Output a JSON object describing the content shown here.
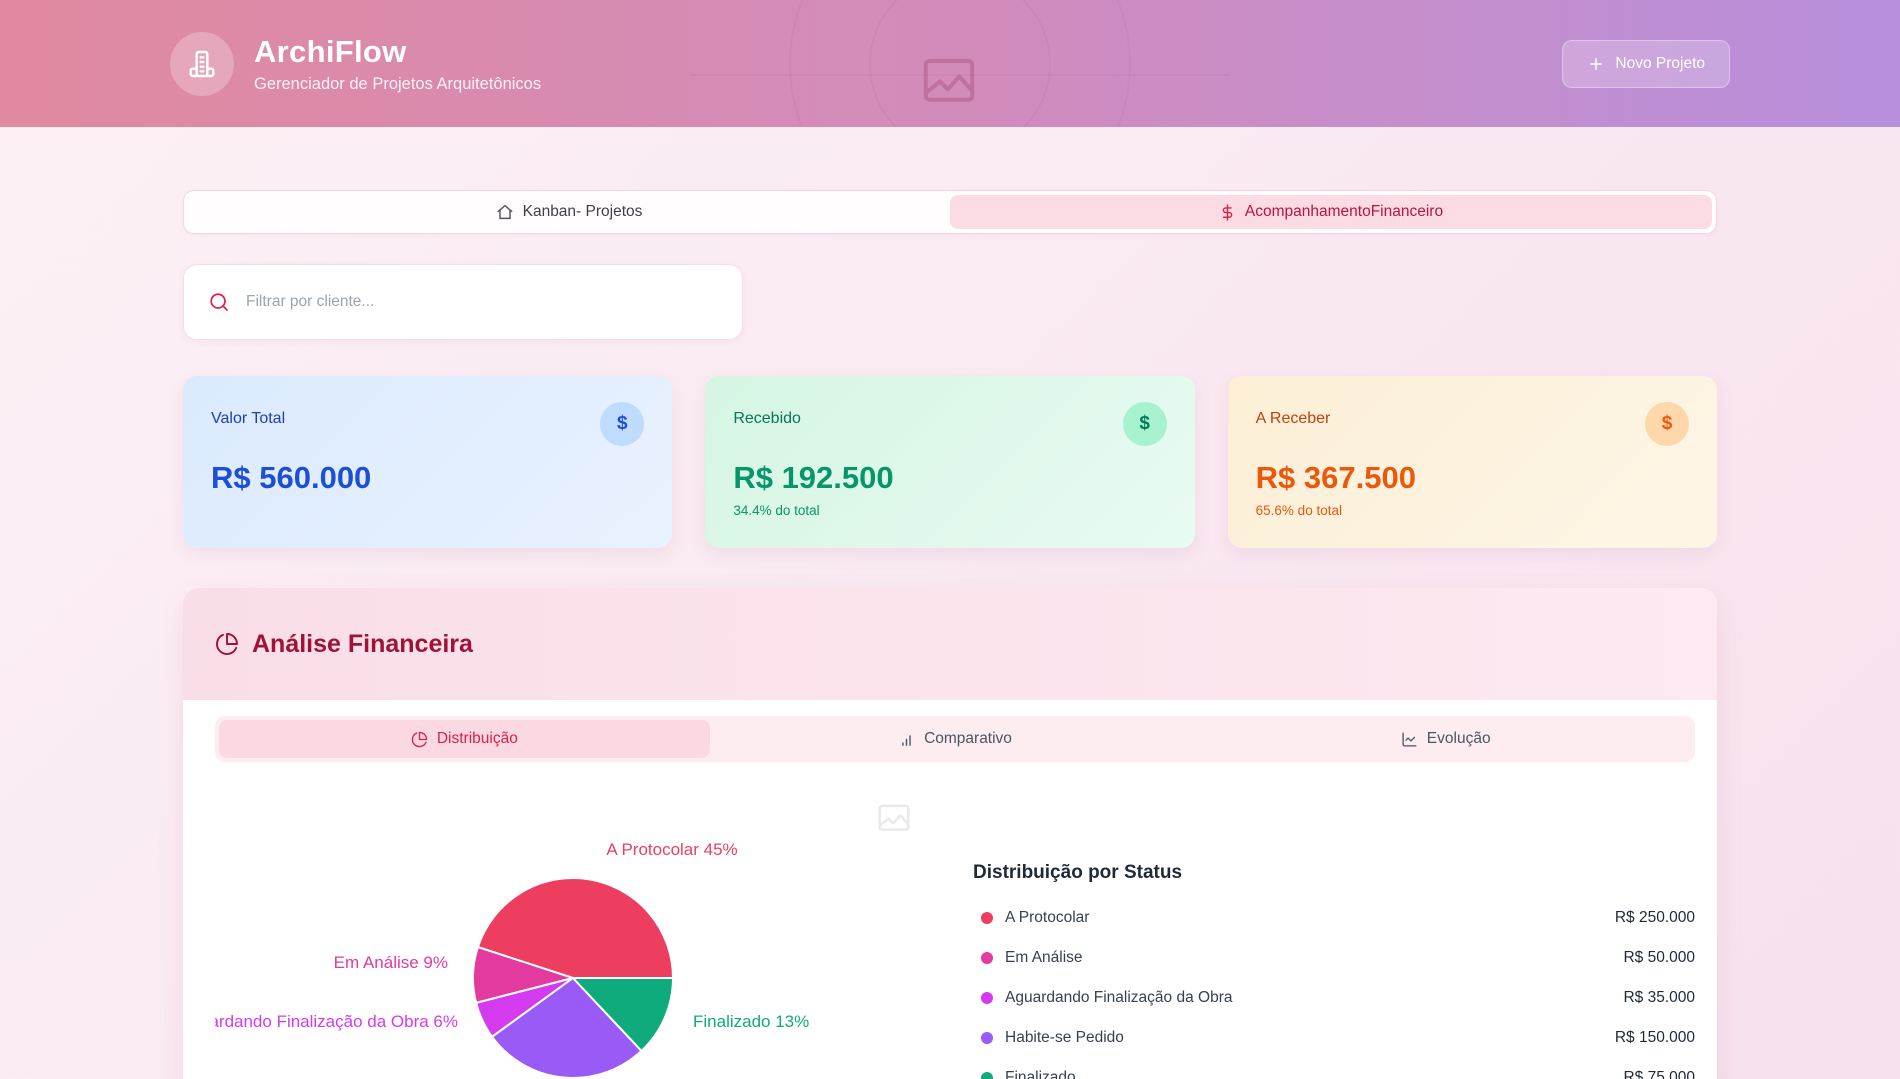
{
  "header": {
    "app_name": "ArchiFlow",
    "subtitle": "Gerenciador de Projetos Arquitetônicos",
    "new_project_label": "Novo Projeto",
    "logo_icon": "building-icon"
  },
  "nav_tabs": [
    {
      "label": "Kanban- Projetos",
      "icon": "home-icon",
      "active": false
    },
    {
      "label": "AcompanhamentoFinanceiro",
      "icon": "dollar-icon",
      "active": true
    }
  ],
  "search": {
    "placeholder": "Filtrar por cliente...",
    "icon": "search-icon"
  },
  "stats": [
    {
      "label": "Valor Total",
      "value": "R$ 560.000",
      "subtext": "",
      "icon": "dollar-circle-icon",
      "accent": "#1d4ed8"
    },
    {
      "label": "Recebido",
      "value": "R$ 192.500",
      "subtext": "34.4% do total",
      "icon": "dollar-circle-icon",
      "accent": "#059669"
    },
    {
      "label": "A Receber",
      "value": "R$ 367.500",
      "subtext": "65.6% do total",
      "icon": "dollar-circle-icon",
      "accent": "#ea580c"
    }
  ],
  "analysis": {
    "title": "Análise Financeira",
    "title_icon": "pie-chart-icon",
    "title_color": "#9f1239",
    "tabs": [
      {
        "label": "Distribuição",
        "icon": "pie-chart-icon",
        "active": true
      },
      {
        "label": "Comparativo",
        "icon": "bar-chart-icon",
        "active": false
      },
      {
        "label": "Evolução",
        "icon": "line-chart-icon",
        "active": false
      }
    ]
  },
  "chart_data": {
    "type": "pie",
    "title": "Distribuição por Status",
    "legend_position": "right",
    "label_format": "{label} {pct}%",
    "total": "R$ 560.000",
    "series": [
      {
        "label": "A Protocolar",
        "pct": 45,
        "amount": "R$ 250.000",
        "color": "#ee3e60"
      },
      {
        "label": "Em Análise",
        "pct": 9,
        "amount": "R$ 50.000",
        "color": "#e23a9e"
      },
      {
        "label": "Aguardando Finalização da Obra",
        "pct": 6,
        "amount": "R$ 35.000",
        "color": "#d43bef"
      },
      {
        "label": "Habite-se Pedido",
        "pct": 27,
        "amount": "R$ 150.000",
        "color": "#9a5af5"
      },
      {
        "label": "Finalizado",
        "pct": 13,
        "amount": "R$ 75.000",
        "color": "#10ab7d"
      }
    ]
  }
}
